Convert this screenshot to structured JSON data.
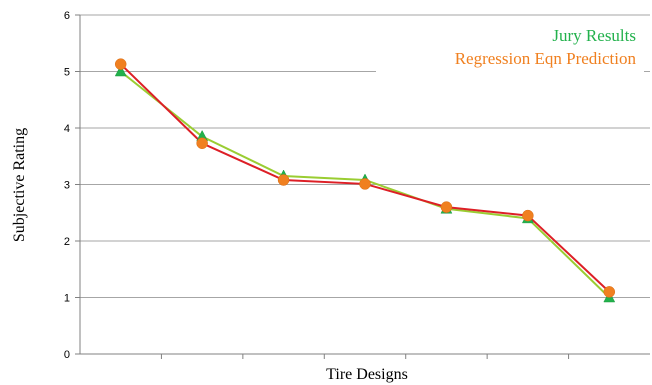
{
  "chart_data": {
    "type": "line",
    "title": "",
    "xlabel": "Tire Designs",
    "ylabel": "Subjective Rating",
    "ylim": [
      0,
      6
    ],
    "yticks": [
      "0",
      "1",
      "2",
      "3",
      "4",
      "5",
      "6"
    ],
    "x": [
      1,
      2,
      3,
      4,
      5,
      6,
      7
    ],
    "grid": "horizontal",
    "legend_placement": "top-right",
    "series": [
      {
        "name": "Jury Results",
        "color": "#22b14c",
        "line_color": "#9acd32",
        "marker": "triangle",
        "values": [
          5.0,
          3.85,
          3.15,
          3.08,
          2.57,
          2.4,
          1.0
        ]
      },
      {
        "name": "Regression Eqn Prediction",
        "color": "#f08020",
        "line_color": "#dd1f26",
        "marker": "circle",
        "values": [
          5.13,
          3.73,
          3.08,
          3.01,
          2.6,
          2.45,
          1.1
        ]
      }
    ]
  }
}
